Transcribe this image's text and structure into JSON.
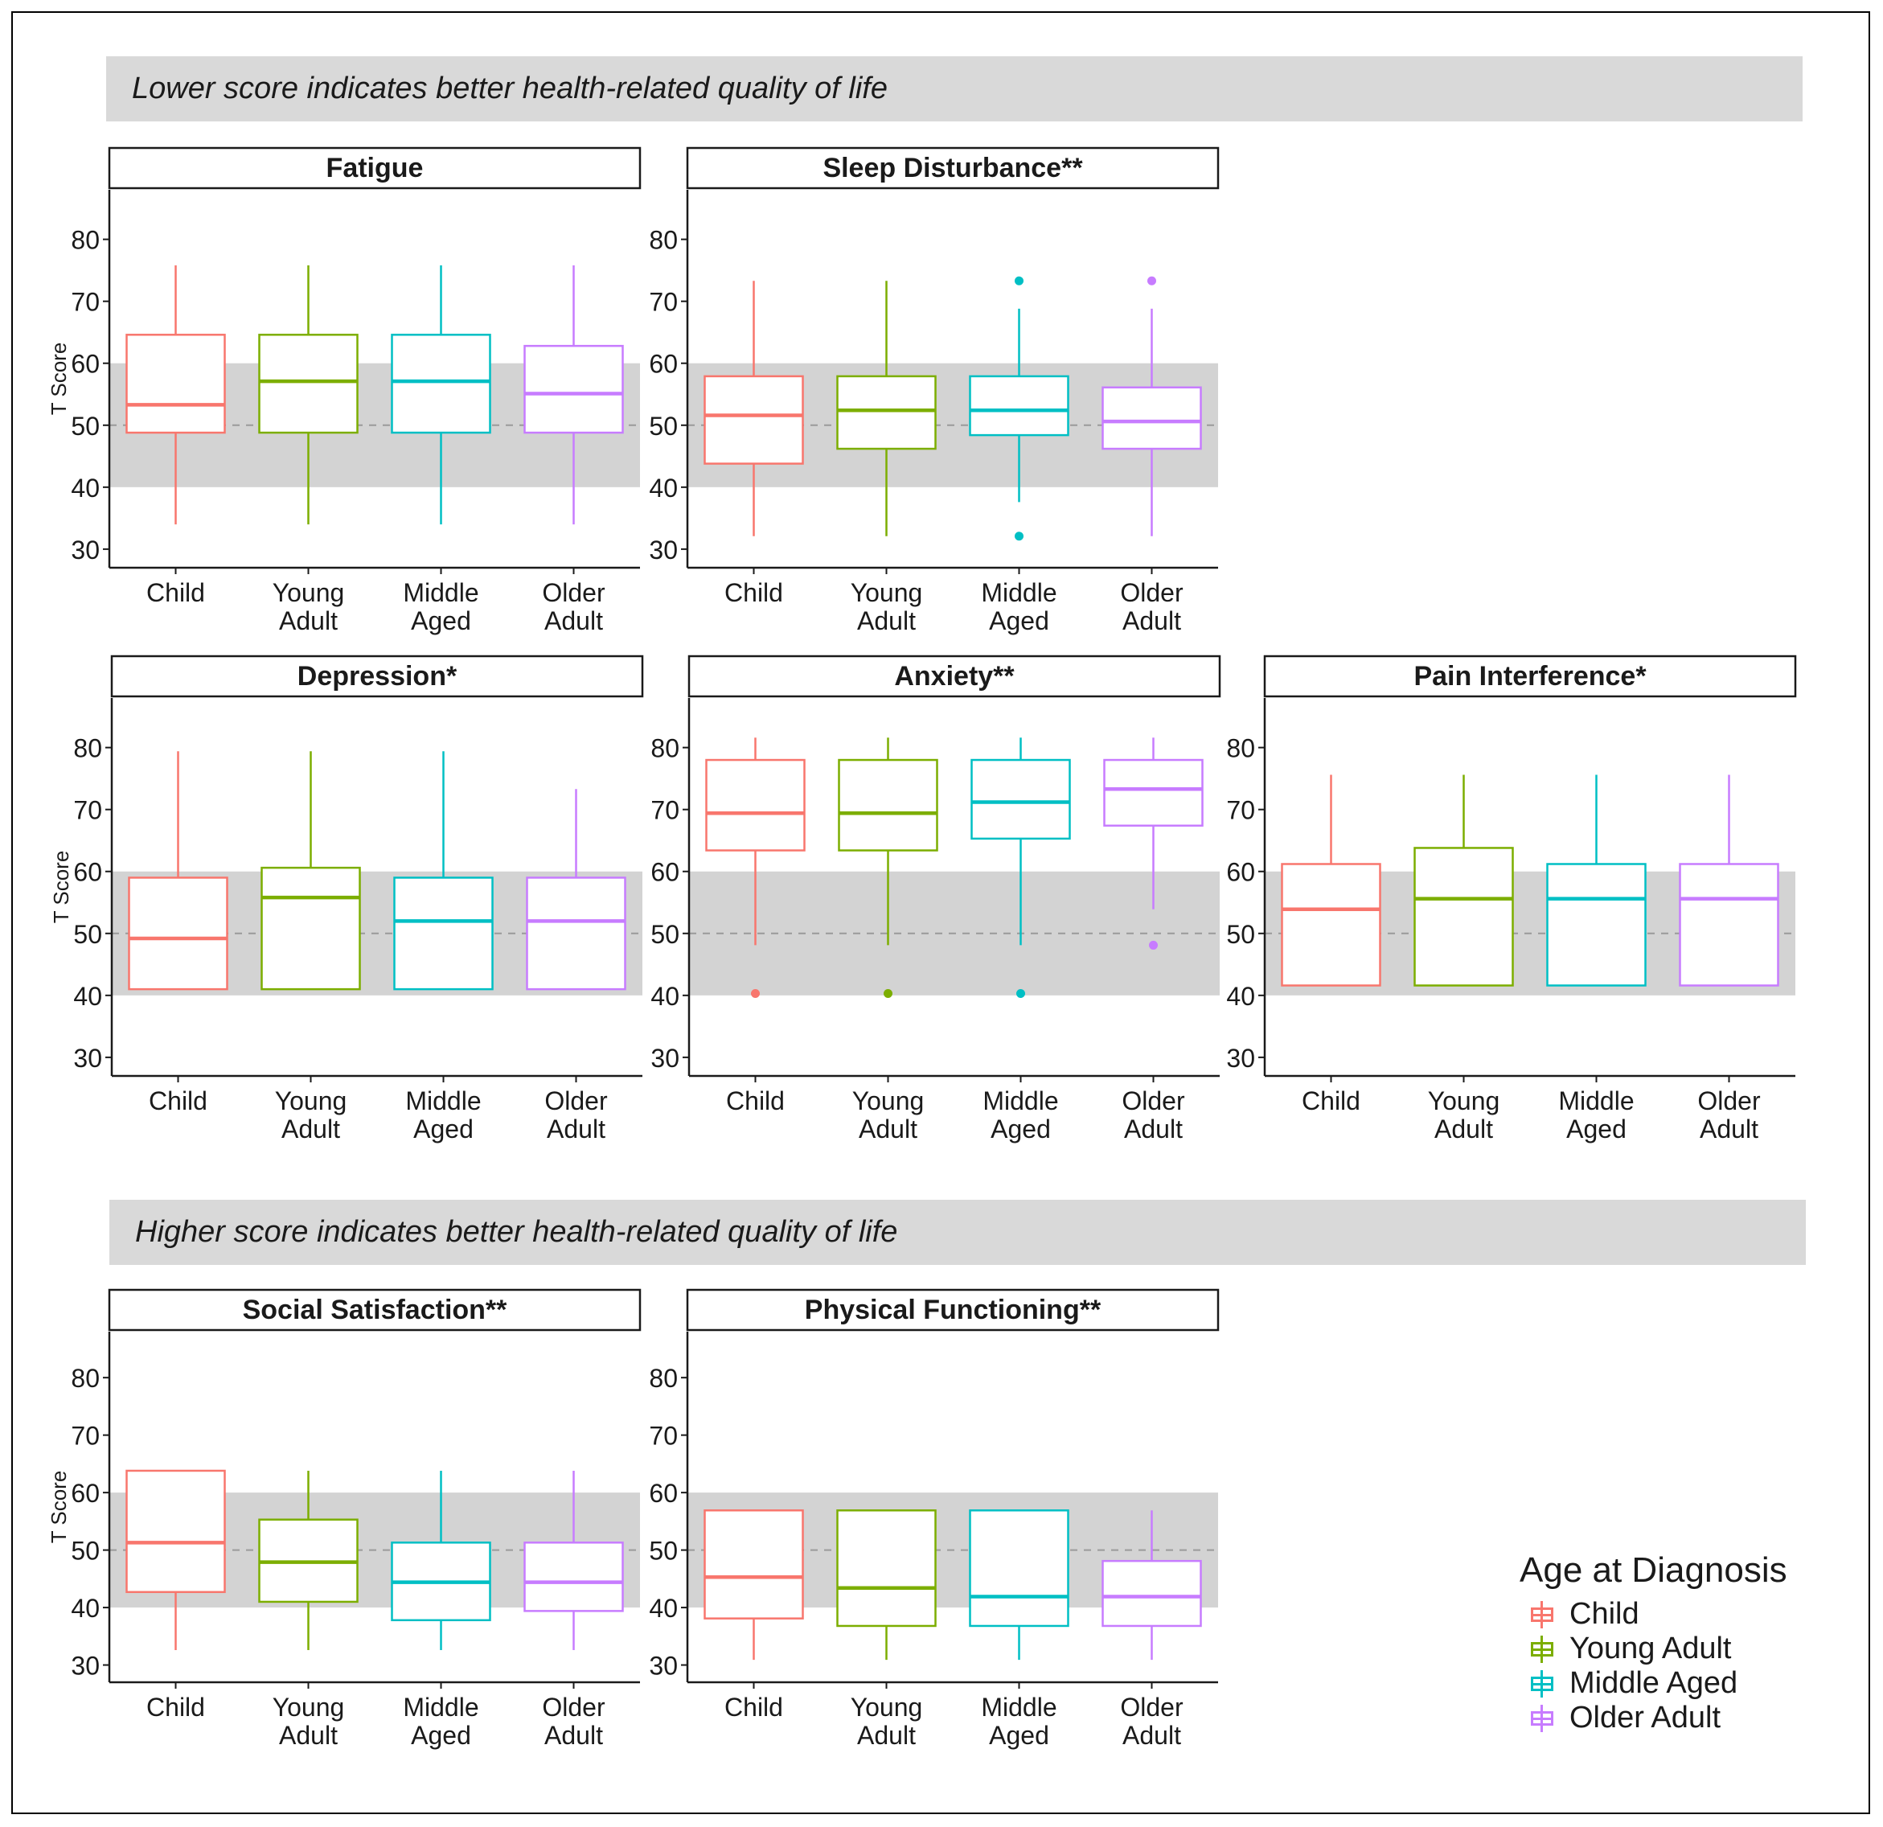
{
  "banners": {
    "top": "Lower score indicates better health-related quality of life",
    "bottom": "Higher score indicates better health-related quality of life"
  },
  "legend": {
    "title": "Age at Diagnosis",
    "items": [
      {
        "label": "Child",
        "color": "#f8766d"
      },
      {
        "label": "Young Adult",
        "color": "#7cae00"
      },
      {
        "label": "Middle Aged",
        "color": "#00bfc4"
      },
      {
        "label": "Older Adult",
        "color": "#c77cff"
      }
    ]
  },
  "chart_data": {
    "type": "boxplot",
    "ylabel": "T Score",
    "ylim": [
      27,
      88
    ],
    "yticks": [
      30,
      40,
      50,
      60,
      70,
      80
    ],
    "reference_band": [
      40,
      60
    ],
    "reference_line": 50,
    "categories": [
      "Child",
      "Young Adult",
      "Middle Aged",
      "Older Adult"
    ],
    "category_lines": [
      [
        "Child"
      ],
      [
        "Young",
        "Adult"
      ],
      [
        "Middle",
        "Aged"
      ],
      [
        "Older",
        "Adult"
      ]
    ],
    "colors": [
      "#f8766d",
      "#7cae00",
      "#00bfc4",
      "#c77cff"
    ],
    "panels": [
      {
        "title": "Fatigue",
        "boxes": [
          {
            "low": 34,
            "q1": 48.8,
            "median": 53.3,
            "q3": 64.6,
            "high": 75.8,
            "outliers": []
          },
          {
            "low": 34,
            "q1": 48.8,
            "median": 57.1,
            "q3": 64.6,
            "high": 75.8,
            "outliers": []
          },
          {
            "low": 34,
            "q1": 48.8,
            "median": 57.1,
            "q3": 64.6,
            "high": 75.8,
            "outliers": []
          },
          {
            "low": 34,
            "q1": 48.8,
            "median": 55.1,
            "q3": 62.8,
            "high": 75.8,
            "outliers": []
          }
        ]
      },
      {
        "title": "Sleep Disturbance**",
        "boxes": [
          {
            "low": 32.1,
            "q1": 43.8,
            "median": 51.6,
            "q3": 57.9,
            "high": 73.3,
            "outliers": []
          },
          {
            "low": 32.1,
            "q1": 46.2,
            "median": 52.4,
            "q3": 57.9,
            "high": 73.3,
            "outliers": []
          },
          {
            "low": 37.6,
            "q1": 48.4,
            "median": 52.4,
            "q3": 57.9,
            "high": 68.8,
            "outliers": [
              73.3,
              32.1
            ]
          },
          {
            "low": 32.1,
            "q1": 46.2,
            "median": 50.6,
            "q3": 56.1,
            "high": 68.8,
            "outliers": [
              73.3
            ]
          }
        ]
      },
      {
        "title": "Depression*",
        "boxes": [
          {
            "low": 41,
            "q1": 41,
            "median": 49.2,
            "q3": 59,
            "high": 79.4,
            "outliers": []
          },
          {
            "low": 41,
            "q1": 41,
            "median": 55.8,
            "q3": 60.6,
            "high": 79.4,
            "outliers": []
          },
          {
            "low": 41,
            "q1": 41,
            "median": 52,
            "q3": 59,
            "high": 79.4,
            "outliers": []
          },
          {
            "low": 41,
            "q1": 41,
            "median": 52,
            "q3": 59,
            "high": 73.3,
            "outliers": []
          }
        ]
      },
      {
        "title": "Anxiety**",
        "boxes": [
          {
            "low": 48.1,
            "q1": 63.4,
            "median": 69.4,
            "q3": 78,
            "high": 81.6,
            "outliers": [
              40.3
            ]
          },
          {
            "low": 48.1,
            "q1": 63.4,
            "median": 69.4,
            "q3": 78,
            "high": 81.6,
            "outliers": [
              40.3
            ]
          },
          {
            "low": 48.1,
            "q1": 65.3,
            "median": 71.2,
            "q3": 78,
            "high": 81.6,
            "outliers": [
              40.3
            ]
          },
          {
            "low": 53.9,
            "q1": 67.4,
            "median": 73.3,
            "q3": 78,
            "high": 81.6,
            "outliers": [
              48.1
            ]
          }
        ]
      },
      {
        "title": "Pain Interference*",
        "boxes": [
          {
            "low": 41.6,
            "q1": 41.6,
            "median": 53.9,
            "q3": 61.2,
            "high": 75.6,
            "outliers": []
          },
          {
            "low": 41.6,
            "q1": 41.6,
            "median": 55.6,
            "q3": 63.8,
            "high": 75.6,
            "outliers": []
          },
          {
            "low": 41.6,
            "q1": 41.6,
            "median": 55.6,
            "q3": 61.2,
            "high": 75.6,
            "outliers": []
          },
          {
            "low": 41.6,
            "q1": 41.6,
            "median": 55.6,
            "q3": 61.2,
            "high": 75.6,
            "outliers": []
          }
        ]
      },
      {
        "title": "Social Satisfaction**",
        "boxes": [
          {
            "low": 32.6,
            "q1": 42.7,
            "median": 51.3,
            "q3": 63.8,
            "high": 63.8,
            "outliers": []
          },
          {
            "low": 32.6,
            "q1": 41,
            "median": 47.9,
            "q3": 55.3,
            "high": 63.8,
            "outliers": []
          },
          {
            "low": 32.6,
            "q1": 37.8,
            "median": 44.4,
            "q3": 51.3,
            "high": 63.8,
            "outliers": []
          },
          {
            "low": 32.6,
            "q1": 39.4,
            "median": 44.4,
            "q3": 51.3,
            "high": 63.8,
            "outliers": []
          }
        ]
      },
      {
        "title": "Physical Functioning**",
        "boxes": [
          {
            "low": 30.9,
            "q1": 38.1,
            "median": 45.3,
            "q3": 56.9,
            "high": 56.9,
            "outliers": []
          },
          {
            "low": 30.9,
            "q1": 36.8,
            "median": 43.4,
            "q3": 56.9,
            "high": 56.9,
            "outliers": []
          },
          {
            "low": 30.9,
            "q1": 36.8,
            "median": 41.9,
            "q3": 56.9,
            "high": 56.9,
            "outliers": []
          },
          {
            "low": 30.9,
            "q1": 36.8,
            "median": 41.9,
            "q3": 48.1,
            "high": 56.9,
            "outliers": []
          }
        ]
      }
    ]
  }
}
